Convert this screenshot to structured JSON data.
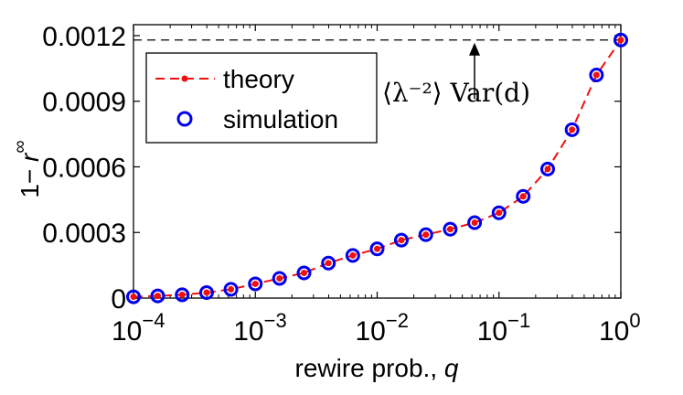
{
  "chart_data": {
    "type": "line",
    "xlabel": "rewire prob., q",
    "ylabel": "1− r∞",
    "xscale": "log",
    "xlim": [
      0.0001,
      1
    ],
    "ylim": [
      0,
      0.00125
    ],
    "grid": false,
    "legend_position": "top-left",
    "x_ticks": [
      {
        "value": 0.0001,
        "base": "10",
        "exp": "−4"
      },
      {
        "value": 0.001,
        "base": "10",
        "exp": "−3"
      },
      {
        "value": 0.01,
        "base": "10",
        "exp": "−2"
      },
      {
        "value": 0.1,
        "base": "10",
        "exp": "−1"
      },
      {
        "value": 1,
        "base": "10",
        "exp": "0"
      }
    ],
    "y_ticks": [
      {
        "value": 0,
        "label": "0"
      },
      {
        "value": 0.0003,
        "label": "0.0003"
      },
      {
        "value": 0.0006,
        "label": "0.0006"
      },
      {
        "value": 0.0009,
        "label": "0.0009"
      },
      {
        "value": 0.0012,
        "label": "0.0012"
      }
    ],
    "series": [
      {
        "name": "theory",
        "style": "dashed-line-dot",
        "color": "#ee1111",
        "x": [
          0.0001,
          0.000158,
          0.000251,
          0.000398,
          0.000631,
          0.001,
          0.00158,
          0.00251,
          0.00398,
          0.00631,
          0.01,
          0.0158,
          0.0251,
          0.0398,
          0.0631,
          0.1,
          0.158,
          0.251,
          0.398,
          0.631,
          1
        ],
        "y": [
          6e-06,
          1e-05,
          1.5e-05,
          2.5e-05,
          4e-05,
          6.5e-05,
          9e-05,
          0.000115,
          0.00016,
          0.000195,
          0.000225,
          0.000265,
          0.00029,
          0.000315,
          0.000345,
          0.00039,
          0.000465,
          0.00059,
          0.00077,
          0.00102,
          0.00118
        ]
      },
      {
        "name": "simulation",
        "style": "open-circle",
        "color": "#0000ee",
        "x": [
          0.0001,
          0.000158,
          0.000251,
          0.000398,
          0.000631,
          0.001,
          0.00158,
          0.00251,
          0.00398,
          0.00631,
          0.01,
          0.0158,
          0.0251,
          0.0398,
          0.0631,
          0.1,
          0.158,
          0.251,
          0.398,
          0.631,
          1
        ],
        "y": [
          6e-06,
          1e-05,
          1.5e-05,
          2.5e-05,
          4e-05,
          6.5e-05,
          9e-05,
          0.000115,
          0.00016,
          0.000195,
          0.000225,
          0.000265,
          0.00029,
          0.000315,
          0.000345,
          0.00039,
          0.000465,
          0.00059,
          0.00077,
          0.00102,
          0.00118
        ]
      }
    ],
    "reference_line": {
      "y": 0.00118,
      "style": "dashed",
      "color": "#000000",
      "annotation": "⟨λ⁻²⟩ Var(d)",
      "arrow_x": 0.063
    }
  }
}
